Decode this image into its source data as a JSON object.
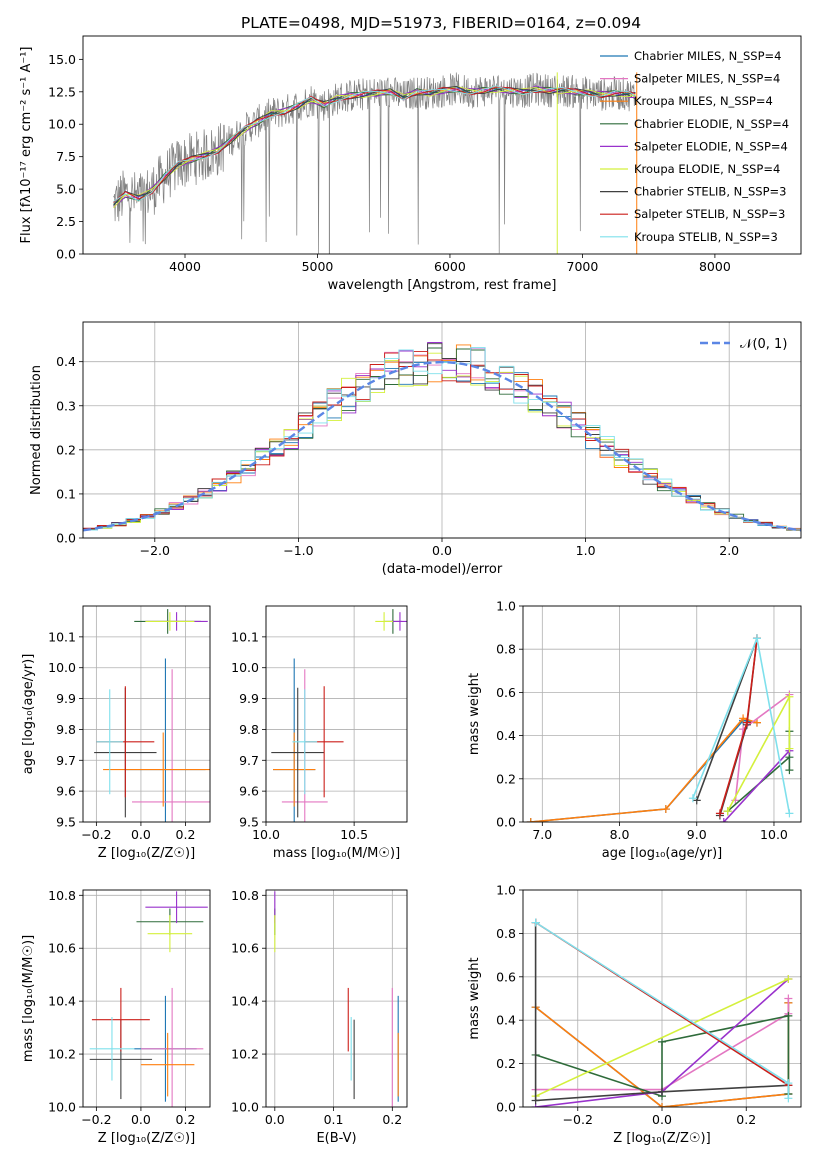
{
  "figure": {
    "title": "PLATE=0498, MJD=51973, FIBERID=0164, z=0.094"
  },
  "series_colors": {
    "Chabrier MILES": "#1f77b4",
    "Salpeter MILES": "#e377c2",
    "Kroupa MILES": "#ff7f0e",
    "Chabrier ELODIE": "#2e6b3a",
    "Salpeter ELODIE": "#9932cc",
    "Kroupa ELODIE": "#d4f03c",
    "Chabrier STELIB": "#404040",
    "Salpeter STELIB": "#cc1f1a",
    "Kroupa STELIB": "#7fe0ec"
  },
  "chart_data": [
    {
      "type": "line",
      "title": "PLATE=0498, MJD=51973, FIBERID=0164, z=0.094",
      "xlabel": "wavelength [Angstrom, rest frame]",
      "ylabel": "Flux [f_λ 10^-17 erg cm^-2 s^-1 A^-1]",
      "xlim": [
        3230,
        8650
      ],
      "ylim": [
        0,
        16.8
      ],
      "xticks": [
        4000,
        5000,
        6000,
        7000,
        8000
      ],
      "yticks": [
        0.0,
        2.5,
        5.0,
        7.5,
        10.0,
        12.5,
        15.0
      ],
      "legend_position": "right",
      "legend": [
        "Chabrier MILES, N_SSP=4",
        "Salpeter MILES, N_SSP=4",
        "Kroupa MILES, N_SSP=4",
        "Chabrier ELODIE, N_SSP=4",
        "Salpeter ELODIE, N_SSP=4",
        "Kroupa ELODIE, N_SSP=4",
        "Chabrier STELIB, N_SSP=3",
        "Salpeter STELIB, N_SSP=3",
        "Kroupa STELIB, N_SSP=3"
      ],
      "data_color": "#808080",
      "model_x": [
        3460,
        3550,
        3650,
        3750,
        3850,
        3950,
        4050,
        4150,
        4250,
        4350,
        4450,
        4550,
        4650,
        4750,
        4850,
        4950,
        5050,
        5150,
        5250,
        5350,
        5450,
        5550,
        5650,
        5750,
        5850,
        5950,
        6050,
        6150,
        6250,
        6350,
        6450,
        6550,
        6650,
        6750,
        6850,
        6950,
        7050,
        7150,
        7250,
        7350,
        7400
      ],
      "model_y": [
        3.8,
        4.6,
        4.3,
        4.9,
        6.0,
        6.9,
        7.3,
        7.6,
        8.0,
        8.8,
        9.6,
        10.2,
        10.8,
        11.0,
        11.4,
        11.9,
        11.5,
        12.0,
        12.2,
        12.3,
        12.4,
        12.5,
        12.1,
        12.5,
        12.4,
        12.6,
        12.7,
        12.5,
        12.6,
        12.7,
        12.6,
        12.5,
        12.7,
        12.6,
        12.6,
        12.5,
        12.4,
        12.3,
        12.4,
        12.3,
        12.2
      ]
    },
    {
      "type": "histogram",
      "xlabel": "(data-model)/error",
      "ylabel": "Normed distribution",
      "xlim": [
        -2.5,
        2.5
      ],
      "ylim": [
        0,
        0.49
      ],
      "xticks": [
        -2,
        -1,
        0,
        1,
        2
      ],
      "yticks": [
        0.0,
        0.1,
        0.2,
        0.3,
        0.4
      ],
      "grid": true,
      "legend_position": "top-right",
      "reference_curve": {
        "name": "N(0,1)",
        "color": "#5b86e5"
      }
    },
    {
      "type": "scatter",
      "xlabel": "Z [log10(Z/Z_sun)]",
      "ylabel": "age [log10(age/yr)]",
      "xlim": [
        -0.26,
        0.31
      ],
      "ylim": [
        9.5,
        10.2
      ],
      "xticks": [
        -0.2,
        0.0,
        0.2
      ],
      "yticks": [
        9.5,
        9.6,
        9.7,
        9.8,
        9.9,
        10.0,
        10.1
      ],
      "grid": true,
      "points": [
        {
          "series": "Chabrier MILES",
          "x": 0.11,
          "y": 9.67,
          "xerr": 0.18,
          "yerr": 0.36
        },
        {
          "series": "Salpeter MILES",
          "x": 0.14,
          "y": 9.565,
          "xerr": 0.18,
          "yerr": 0.43
        },
        {
          "series": "Kroupa MILES",
          "x": 0.1,
          "y": 9.67,
          "xerr": 0.27,
          "yerr": 0.12
        },
        {
          "series": "Chabrier ELODIE",
          "x": 0.12,
          "y": 10.15,
          "xerr": 0.15,
          "yerr": 0.04
        },
        {
          "series": "Salpeter ELODIE",
          "x": 0.16,
          "y": 10.15,
          "xerr": 0.14,
          "yerr": 0.03
        },
        {
          "series": "Kroupa ELODIE",
          "x": 0.13,
          "y": 10.15,
          "xerr": 0.11,
          "yerr": 0.03
        },
        {
          "series": "Chabrier STELIB",
          "x": -0.07,
          "y": 9.725,
          "xerr": 0.14,
          "yerr": 0.21
        },
        {
          "series": "Salpeter STELIB",
          "x": -0.07,
          "y": 9.76,
          "xerr": 0.13,
          "yerr": 0.18
        },
        {
          "series": "Kroupa STELIB",
          "x": -0.14,
          "y": 9.76,
          "xerr": 0.06,
          "yerr": 0.17
        }
      ]
    },
    {
      "type": "scatter",
      "xlabel": "mass [log10(M/M_sun)]",
      "ylabel": "",
      "xlim": [
        10.0,
        10.8
      ],
      "ylim": [
        9.5,
        10.2
      ],
      "xticks": [
        10.0,
        10.5
      ],
      "yticks": [
        9.5,
        9.6,
        9.7,
        9.8,
        9.9,
        10.0,
        10.1
      ],
      "grid": true,
      "points": [
        {
          "series": "Chabrier MILES",
          "x": 10.16,
          "y": 9.67,
          "xerr": 0.12,
          "yerr": 0.36
        },
        {
          "series": "Salpeter MILES",
          "x": 10.22,
          "y": 9.565,
          "xerr": 0.13,
          "yerr": 0.43
        },
        {
          "series": "Kroupa MILES",
          "x": 10.16,
          "y": 9.67,
          "xerr": 0.12,
          "yerr": 0.12
        },
        {
          "series": "Chabrier ELODIE",
          "x": 10.72,
          "y": 10.15,
          "xerr": 0.05,
          "yerr": 0.04
        },
        {
          "series": "Salpeter ELODIE",
          "x": 10.76,
          "y": 10.15,
          "xerr": 0.05,
          "yerr": 0.03
        },
        {
          "series": "Kroupa ELODIE",
          "x": 10.67,
          "y": 10.15,
          "xerr": 0.05,
          "yerr": 0.03
        },
        {
          "series": "Chabrier STELIB",
          "x": 10.18,
          "y": 9.725,
          "xerr": 0.15,
          "yerr": 0.21
        },
        {
          "series": "Salpeter STELIB",
          "x": 10.33,
          "y": 9.76,
          "xerr": 0.11,
          "yerr": 0.18
        },
        {
          "series": "Kroupa STELIB",
          "x": 10.22,
          "y": 9.76,
          "xerr": 0.07,
          "yerr": 0.17
        }
      ]
    },
    {
      "type": "line",
      "xlabel": "age [log10(age/yr)]",
      "ylabel": "mass weight",
      "xlim": [
        6.75,
        10.35
      ],
      "ylim": [
        0,
        1.0
      ],
      "xticks": [
        7,
        8,
        9,
        10
      ],
      "yticks": [
        0.0,
        0.2,
        0.4,
        0.6,
        0.8,
        1.0
      ],
      "grid": true,
      "series": [
        {
          "name": "Chabrier MILES",
          "x": [
            6.85,
            8.6,
            9.6,
            9.78
          ],
          "y": [
            0.0,
            0.06,
            0.47,
            0.46
          ]
        },
        {
          "name": "Kroupa MILES",
          "x": [
            6.85,
            8.6,
            9.6,
            9.78
          ],
          "y": [
            0.0,
            0.06,
            0.48,
            0.46
          ]
        },
        {
          "name": "Salpeter MILES",
          "x": [
            9.5,
            9.6,
            10.2
          ],
          "y": [
            0.1,
            0.43,
            0.59
          ]
        },
        {
          "name": "Chabrier ELODIE",
          "x": [
            9.4,
            10.2,
            10.2,
            10.2
          ],
          "y": [
            0.05,
            0.3,
            0.24,
            0.42
          ]
        },
        {
          "name": "Salpeter ELODIE",
          "x": [
            9.35,
            10.2
          ],
          "y": [
            0.0,
            0.33
          ]
        },
        {
          "name": "Kroupa ELODIE",
          "x": [
            9.4,
            10.2,
            10.2
          ],
          "y": [
            0.05,
            0.58,
            0.34
          ]
        },
        {
          "name": "Chabrier STELIB",
          "x": [
            9.3,
            9.65,
            9.78,
            9.0
          ],
          "y": [
            0.03,
            0.45,
            0.85,
            0.1
          ]
        },
        {
          "name": "Salpeter STELIB",
          "x": [
            9.3,
            9.65,
            9.78
          ],
          "y": [
            0.04,
            0.46,
            0.85
          ]
        },
        {
          "name": "Kroupa STELIB",
          "x": [
            8.95,
            9.78,
            10.2
          ],
          "y": [
            0.11,
            0.85,
            0.04
          ]
        }
      ]
    },
    {
      "type": "scatter",
      "xlabel": "Z [log10(Z/Z_sun)]",
      "ylabel": "mass [log10(M/M_sun)]",
      "xlim": [
        -0.26,
        0.31
      ],
      "ylim": [
        10.0,
        10.82
      ],
      "xticks": [
        -0.2,
        0.0,
        0.2
      ],
      "yticks": [
        10.0,
        10.2,
        10.4,
        10.6,
        10.8
      ],
      "grid": true,
      "points": [
        {
          "series": "Chabrier MILES",
          "x": 0.11,
          "y": 10.22,
          "xerr": 0.14,
          "yerr": 0.2
        },
        {
          "series": "Salpeter MILES",
          "x": 0.14,
          "y": 10.22,
          "xerr": 0.14,
          "yerr": 0.23
        },
        {
          "series": "Kroupa MILES",
          "x": 0.12,
          "y": 10.16,
          "xerr": 0.12,
          "yerr": 0.12
        },
        {
          "series": "Chabrier ELODIE",
          "x": 0.13,
          "y": 10.7,
          "xerr": 0.15,
          "yerr": 0.05
        },
        {
          "series": "Salpeter ELODIE",
          "x": 0.16,
          "y": 10.755,
          "xerr": 0.14,
          "yerr": 0.06
        },
        {
          "series": "Kroupa ELODIE",
          "x": 0.13,
          "y": 10.655,
          "xerr": 0.1,
          "yerr": 0.07
        },
        {
          "series": "Chabrier STELIB",
          "x": -0.09,
          "y": 10.18,
          "xerr": 0.14,
          "yerr": 0.15
        },
        {
          "series": "Salpeter STELIB",
          "x": -0.09,
          "y": 10.33,
          "xerr": 0.13,
          "yerr": 0.12
        },
        {
          "series": "Kroupa STELIB",
          "x": -0.13,
          "y": 10.22,
          "xerr": 0.1,
          "yerr": 0.12
        }
      ]
    },
    {
      "type": "scatter",
      "xlabel": "E(B-V)",
      "ylabel": "",
      "xlim": [
        -0.015,
        0.225
      ],
      "ylim": [
        10.0,
        10.82
      ],
      "xticks": [
        0.0,
        0.1,
        0.2
      ],
      "yticks": [
        10.0,
        10.2,
        10.4,
        10.6,
        10.8
      ],
      "grid": true,
      "points": [
        {
          "series": "Chabrier MILES",
          "x": 0.21,
          "y": 10.22,
          "yerr": 0.2
        },
        {
          "series": "Salpeter MILES",
          "x": 0.2,
          "y": 10.22,
          "yerr": 0.23
        },
        {
          "series": "Kroupa MILES",
          "x": 0.21,
          "y": 10.16,
          "yerr": 0.12
        },
        {
          "series": "Chabrier ELODIE",
          "x": 0.0,
          "y": 10.7,
          "yerr": 0.05
        },
        {
          "series": "Salpeter ELODIE",
          "x": 0.0,
          "y": 10.755,
          "yerr": 0.06
        },
        {
          "series": "Kroupa ELODIE",
          "x": 0.0,
          "y": 10.655,
          "yerr": 0.07
        },
        {
          "series": "Chabrier STELIB",
          "x": 0.135,
          "y": 10.18,
          "yerr": 0.15
        },
        {
          "series": "Salpeter STELIB",
          "x": 0.125,
          "y": 10.33,
          "yerr": 0.12
        },
        {
          "series": "Kroupa STELIB",
          "x": 0.13,
          "y": 10.22,
          "yerr": 0.12
        }
      ]
    },
    {
      "type": "line",
      "xlabel": "Z [log10(Z/Z_sun)]",
      "ylabel": "mass weight",
      "xlim": [
        -0.33,
        0.33
      ],
      "ylim": [
        0,
        1.0
      ],
      "xticks": [
        -0.2,
        0.0,
        0.2
      ],
      "yticks": [
        0.0,
        0.2,
        0.4,
        0.6,
        0.8,
        1.0
      ],
      "grid": true,
      "series": [
        {
          "name": "Chabrier MILES",
          "x": [
            -0.3,
            0.0,
            0.3,
            0.3
          ],
          "y": [
            0.46,
            0.0,
            0.06,
            0.48
          ]
        },
        {
          "name": "Kroupa MILES",
          "x": [
            -0.3,
            0.0,
            0.3,
            0.3
          ],
          "y": [
            0.46,
            0.0,
            0.06,
            0.48
          ]
        },
        {
          "name": "Salpeter MILES",
          "x": [
            -0.3,
            0.0,
            0.3,
            0.3
          ],
          "y": [
            0.08,
            0.08,
            0.43,
            0.5
          ]
        },
        {
          "name": "Chabrier ELODIE",
          "x": [
            -0.3,
            0.0,
            0.0,
            0.3,
            0.3
          ],
          "y": [
            0.24,
            0.05,
            0.3,
            0.42,
            0.06
          ]
        },
        {
          "name": "Salpeter ELODIE",
          "x": [
            -0.3,
            0.0,
            0.3
          ],
          "y": [
            0.0,
            0.07,
            0.59
          ]
        },
        {
          "name": "Kroupa ELODIE",
          "x": [
            -0.3,
            0.3
          ],
          "y": [
            0.05,
            0.59
          ]
        },
        {
          "name": "Chabrier STELIB",
          "x": [
            -0.3,
            -0.3,
            0.0,
            0.3
          ],
          "y": [
            0.85,
            0.03,
            0.07,
            0.1
          ]
        },
        {
          "name": "Salpeter STELIB",
          "x": [
            -0.3,
            0.3
          ],
          "y": [
            0.85,
            0.1
          ]
        },
        {
          "name": "Kroupa STELIB",
          "x": [
            -0.3,
            0.3,
            0.3
          ],
          "y": [
            0.85,
            0.11,
            0.04
          ]
        }
      ]
    }
  ]
}
